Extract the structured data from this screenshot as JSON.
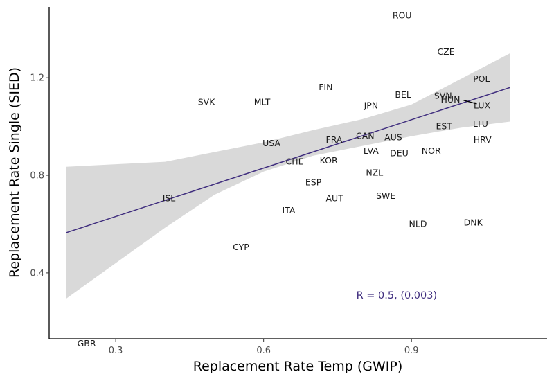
{
  "chart_data": {
    "type": "scatter",
    "title": "",
    "xlabel": "Replacement Rate Temp (GWIP)",
    "ylabel": "Replacement Rate Single (SIED)",
    "xlim": [
      0.165,
      1.175
    ],
    "ylim": [
      0.13,
      1.49
    ],
    "x_ticks": [
      0.3,
      0.6,
      0.9
    ],
    "x_tick_labels": [
      "0.3",
      "0.6",
      "0.9"
    ],
    "y_ticks": [
      0.4,
      0.8,
      1.2
    ],
    "y_tick_labels": [
      "0.4",
      "0.8",
      "1.2"
    ],
    "grid": false,
    "points": [
      {
        "label": "ROU",
        "x": 0.881,
        "y": 1.455
      },
      {
        "label": "CZE",
        "x": 0.97,
        "y": 1.305
      },
      {
        "label": "POL",
        "x": 1.042,
        "y": 1.195
      },
      {
        "label": "FIN",
        "x": 0.726,
        "y": 1.16
      },
      {
        "label": "BEL",
        "x": 0.883,
        "y": 1.13
      },
      {
        "label": "SVN",
        "x": 0.964,
        "y": 1.125
      },
      {
        "label": "SVK",
        "x": 0.484,
        "y": 1.1
      },
      {
        "label": "MLT",
        "x": 0.597,
        "y": 1.1
      },
      {
        "label": "LUX",
        "x": 1.043,
        "y": 1.085
      },
      {
        "label": "JPN",
        "x": 0.818,
        "y": 1.085
      },
      {
        "label": "HUN",
        "x": 0.979,
        "y": 1.11
      },
      {
        "label": "LTU",
        "x": 1.04,
        "y": 1.01
      },
      {
        "label": "EST",
        "x": 0.966,
        "y": 1.0
      },
      {
        "label": "CAN",
        "x": 0.806,
        "y": 0.96
      },
      {
        "label": "AUS",
        "x": 0.863,
        "y": 0.955
      },
      {
        "label": "HRV",
        "x": 1.044,
        "y": 0.945
      },
      {
        "label": "FRA",
        "x": 0.743,
        "y": 0.945
      },
      {
        "label": "USA",
        "x": 0.616,
        "y": 0.93
      },
      {
        "label": "LVA",
        "x": 0.818,
        "y": 0.9
      },
      {
        "label": "NOR",
        "x": 0.94,
        "y": 0.9
      },
      {
        "label": "DEU",
        "x": 0.875,
        "y": 0.89
      },
      {
        "label": "KOR",
        "x": 0.732,
        "y": 0.86
      },
      {
        "label": "CHE",
        "x": 0.663,
        "y": 0.855
      },
      {
        "label": "NZL",
        "x": 0.825,
        "y": 0.81
      },
      {
        "label": "ESP",
        "x": 0.701,
        "y": 0.77
      },
      {
        "label": "SWE",
        "x": 0.848,
        "y": 0.715
      },
      {
        "label": "AUT",
        "x": 0.744,
        "y": 0.705
      },
      {
        "label": "ISL",
        "x": 0.408,
        "y": 0.705
      },
      {
        "label": "ITA",
        "x": 0.651,
        "y": 0.655
      },
      {
        "label": "NLD",
        "x": 0.913,
        "y": 0.6
      },
      {
        "label": "DNK",
        "x": 1.025,
        "y": 0.605
      },
      {
        "label": "CYP",
        "x": 0.554,
        "y": 0.505
      },
      {
        "label": "GBR",
        "x": 0.241,
        "y": 0.11
      }
    ],
    "regression": {
      "color": "#3f2d7e",
      "x_range": [
        0.2,
        1.1
      ],
      "line": [
        [
          0.2,
          0.565
        ],
        [
          1.1,
          1.16
        ]
      ],
      "band_upper": [
        [
          0.2,
          0.835
        ],
        [
          0.4,
          0.855
        ],
        [
          0.6,
          0.935
        ],
        [
          0.7,
          0.985
        ],
        [
          0.8,
          1.03
        ],
        [
          0.9,
          1.09
        ],
        [
          1.0,
          1.195
        ],
        [
          1.1,
          1.3
        ]
      ],
      "band_lower": [
        [
          0.2,
          0.295
        ],
        [
          0.4,
          0.585
        ],
        [
          0.5,
          0.72
        ],
        [
          0.6,
          0.815
        ],
        [
          0.7,
          0.88
        ],
        [
          0.8,
          0.92
        ],
        [
          0.9,
          0.96
        ],
        [
          1.0,
          0.995
        ],
        [
          1.1,
          1.02
        ]
      ],
      "band_color": "#d9d9d9"
    },
    "annotation": {
      "text": "R = 0.5, (0.003)",
      "color": "#3f2d7e",
      "x": 0.87,
      "y": 0.295
    }
  }
}
